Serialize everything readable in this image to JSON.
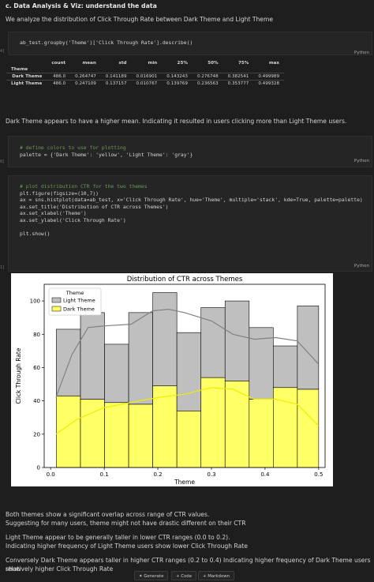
{
  "section": {
    "heading": "c. Data Analysis & Viz: understand the data",
    "intro": "We analyze the distribution of Click Through Rate between Dark Theme and Light Theme"
  },
  "cell1": {
    "code": "ab_test.groupby('Theme')['Click Through Rate'].describe()",
    "language": "Python",
    "gutter": "4]"
  },
  "describe_table": {
    "columns": [
      "count",
      "mean",
      "std",
      "min",
      "25%",
      "50%",
      "75%",
      "max"
    ],
    "index_name": "Theme",
    "rows": [
      {
        "label": "Dark Theme",
        "values": [
          "486.0",
          "0.264747",
          "0.141189",
          "0.016901",
          "0.143243",
          "0.276748",
          "0.382541",
          "0.499989"
        ]
      },
      {
        "label": "Light Theme",
        "values": [
          "486.0",
          "0.247109",
          "0.137157",
          "0.010767",
          "0.139769",
          "0.236563",
          "0.353777",
          "0.499328"
        ]
      }
    ]
  },
  "observation1": "Dark Theme appears to have a higher mean. Indicating it resulted in users clicking more than Light Theme users.",
  "cell2": {
    "comment": "# define colors to use for plotting",
    "line": "palette = {'Dark Theme': 'yellow', 'Light Theme': 'gray'}",
    "language": "Python",
    "gutter": "0]"
  },
  "cell3": {
    "lines": [
      "# plot distribution CTR for the two themes",
      "plt.figure(figsize=(10,7))",
      "ax = sns.histplot(data=ab_test, x='Click Through Rate', hue='Theme', multiple='stack', kde=True, palette=palette)",
      "ax.set_title('Distribution of CTR across Themes')",
      "ax.set_xlabel('Theme')",
      "ax.set_ylabel('Click Through Rate')",
      "",
      "plt.show()"
    ],
    "language": "Python",
    "gutter": "1]"
  },
  "chart_data": {
    "type": "bar",
    "title": "Distribution of CTR across Themes",
    "xlabel": "Theme",
    "ylabel": "Click Through Rate",
    "xlim": [
      -0.012,
      0.512
    ],
    "ylim": [
      0,
      110
    ],
    "xticks": [
      "0.0",
      "0.1",
      "0.2",
      "0.3",
      "0.4",
      "0.5"
    ],
    "yticks": [
      "0",
      "20",
      "40",
      "60",
      "80",
      "100"
    ],
    "bin_edges": [
      0.0107,
      0.0557,
      0.1006,
      0.1456,
      0.1905,
      0.2355,
      0.2805,
      0.3254,
      0.3704,
      0.4153,
      0.4603,
      0.5
    ],
    "series": [
      {
        "name": "Dark Theme",
        "color": "#ffff00",
        "values": [
          43,
          41,
          39,
          38,
          49,
          34,
          54,
          52,
          41,
          48,
          47
        ]
      },
      {
        "name": "Light Theme",
        "color": "#808080",
        "values": [
          40,
          52,
          35,
          55,
          56,
          47,
          42,
          48,
          43,
          25,
          50
        ]
      }
    ],
    "kde": {
      "dark": [
        [
          0.01,
          20
        ],
        [
          0.05,
          29
        ],
        [
          0.1,
          36
        ],
        [
          0.15,
          39
        ],
        [
          0.2,
          42
        ],
        [
          0.25,
          44
        ],
        [
          0.3,
          48
        ],
        [
          0.34,
          47
        ],
        [
          0.38,
          41
        ],
        [
          0.42,
          41
        ],
        [
          0.46,
          38
        ],
        [
          0.5,
          25
        ]
      ],
      "total": [
        [
          0.01,
          42
        ],
        [
          0.04,
          68
        ],
        [
          0.07,
          84
        ],
        [
          0.1,
          85
        ],
        [
          0.15,
          86
        ],
        [
          0.19,
          94
        ],
        [
          0.22,
          95
        ],
        [
          0.25,
          93
        ],
        [
          0.3,
          88
        ],
        [
          0.34,
          80
        ],
        [
          0.38,
          77
        ],
        [
          0.42,
          78
        ],
        [
          0.46,
          76
        ],
        [
          0.5,
          62
        ]
      ]
    },
    "legend": {
      "title": "Theme",
      "position": "top-left"
    }
  },
  "observations": [
    "Both themes show a significant overlap across range of CTR values.",
    "Suggesting for many users, theme might not have drastic different on their CTR",
    "Light Theme appear to be generally taller in lower CTR ranges (0.0 to 0.2).",
    "Indicating higher frequency of Light Theme users show lower Click Through Rate",
    "Conversely Dark Theme appears taller in higher CTR ranges (0.2 to 0.4) Indicating higher frequency of Dark Theme users show",
    "relatively higher Click Through Rate"
  ],
  "toolbar": {
    "generate": "Generate",
    "code": "+ Code",
    "markdown": "+ Markdown"
  }
}
